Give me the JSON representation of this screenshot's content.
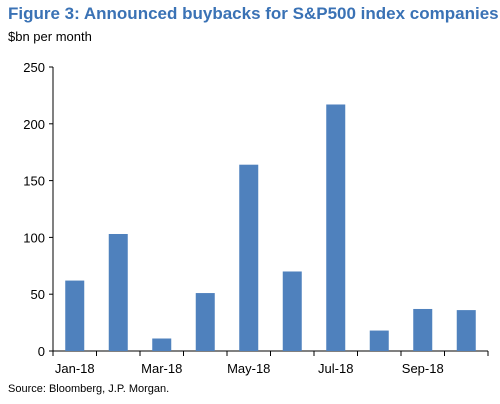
{
  "header": {
    "title": "Figure 3: Announced buybacks for S&P500 index companies",
    "unit_label": "$bn per month"
  },
  "footer": {
    "source": "Source: Bloomberg, J.P. Morgan."
  },
  "colors": {
    "title": "#3a72b5",
    "bar": "#4f81bd",
    "axis": "#000000"
  },
  "chart_data": {
    "type": "bar",
    "title": "Figure 3: Announced buybacks for S&P500 index companies",
    "ylabel": "$bn per month",
    "xlabel": "",
    "categories": [
      "Jan-18",
      "Feb-18",
      "Mar-18",
      "Apr-18",
      "May-18",
      "Jun-18",
      "Jul-18",
      "Aug-18",
      "Sep-18",
      "Oct-18"
    ],
    "x_tick_labels": [
      "Jan-18",
      "Mar-18",
      "May-18",
      "Jul-18",
      "Sep-18"
    ],
    "values": [
      62,
      103,
      11,
      51,
      164,
      70,
      217,
      18,
      37,
      36
    ],
    "ylim": [
      0,
      250
    ],
    "y_ticks": [
      0,
      50,
      100,
      150,
      200,
      250
    ],
    "grid": false,
    "legend": "none"
  }
}
